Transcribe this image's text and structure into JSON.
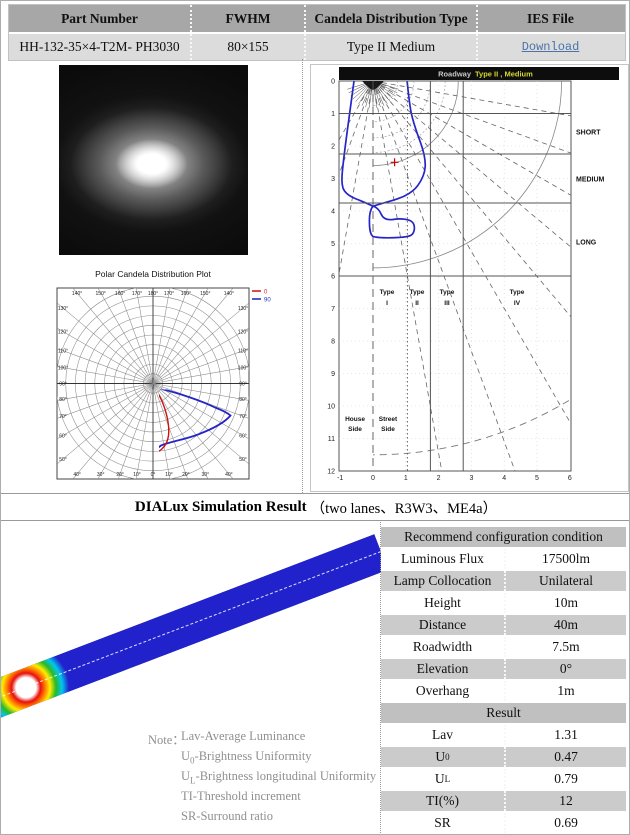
{
  "top_table": {
    "headers": [
      "Part Number",
      "FWHM",
      "Candela Distribution Type",
      "IES File"
    ],
    "part_number": "HH-132-35×4-T2M- PH3030",
    "fwhm": "80×155",
    "candela_type": "Type II Medium",
    "ies_link": "Download"
  },
  "polar": {
    "title": "Polar Candela Distribution Plot",
    "legend": [
      {
        "label": "0",
        "color": "#cc2222"
      },
      {
        "label": "90",
        "color": "#2233bb"
      }
    ],
    "angle_step": 10,
    "angle_max": 180,
    "rings": 10
  },
  "roadway": {
    "title_app": "Roadway",
    "title_type": "Type II , Medium",
    "y_ticks": [
      0,
      1,
      2,
      3,
      4,
      5,
      6,
      7,
      8,
      9,
      10,
      11,
      12
    ],
    "x_ticks": [
      -1,
      0,
      1,
      2,
      3,
      4,
      5,
      6
    ],
    "zone_labels": [
      "SHORT",
      "MEDIUM",
      "LONG"
    ],
    "type_labels": [
      {
        "l1": "Type",
        "l2": "I"
      },
      {
        "l1": "Type",
        "l2": "II"
      },
      {
        "l1": "Type",
        "l2": "III"
      },
      {
        "l1": "Type",
        "l2": "IV"
      }
    ],
    "side_labels": [
      {
        "l1": "House",
        "l2": "Side"
      },
      {
        "l1": "Street",
        "l2": "Side"
      }
    ]
  },
  "dialux": {
    "section_title_bold": "DIALux Simulation Result",
    "section_title_rest": "（two lanes、R3W3、ME4a）",
    "config_header": "Recommend configuration condition",
    "config_rows": [
      {
        "label": "Luminous Flux",
        "value": "17500lm"
      },
      {
        "label": "Lamp Collocation",
        "value": "Unilateral"
      },
      {
        "label": "Height",
        "value": "10m"
      },
      {
        "label": "Distance",
        "value": "40m"
      },
      {
        "label": "Roadwidth",
        "value": "7.5m"
      },
      {
        "label": "Elevation",
        "value": "0°"
      },
      {
        "label": "Overhang",
        "value": "1m"
      }
    ],
    "result_header": "Result",
    "result_rows": [
      {
        "pre": "Lav",
        "sub": "",
        "value": "1.31"
      },
      {
        "pre": "U",
        "sub": "0",
        "value": "0.47"
      },
      {
        "pre": "U",
        "sub": "L",
        "value": "0.79"
      },
      {
        "pre": "TI(%)",
        "sub": "",
        "value": "12"
      },
      {
        "pre": "SR",
        "sub": "",
        "value": "0.69"
      }
    ],
    "notes_label": "Note：",
    "notes": [
      {
        "pre": "Lav-Average Luminance",
        "sub": "",
        "rest": ""
      },
      {
        "pre": "U",
        "sub": "0",
        "rest": "-Brightness Uniformity"
      },
      {
        "pre": "U",
        "sub": "L",
        "rest": "-Brightness longitudinal Uniformity"
      },
      {
        "pre": "TI-Threshold increment",
        "sub": "",
        "rest": ""
      },
      {
        "pre": "SR-Surround ratio",
        "sub": "",
        "rest": ""
      }
    ]
  },
  "colors": {
    "curve_blue": "#2525c8",
    "curve_red": "#cc1111",
    "link_blue": "#4a74a8",
    "title_yellow": "#d6d630"
  }
}
